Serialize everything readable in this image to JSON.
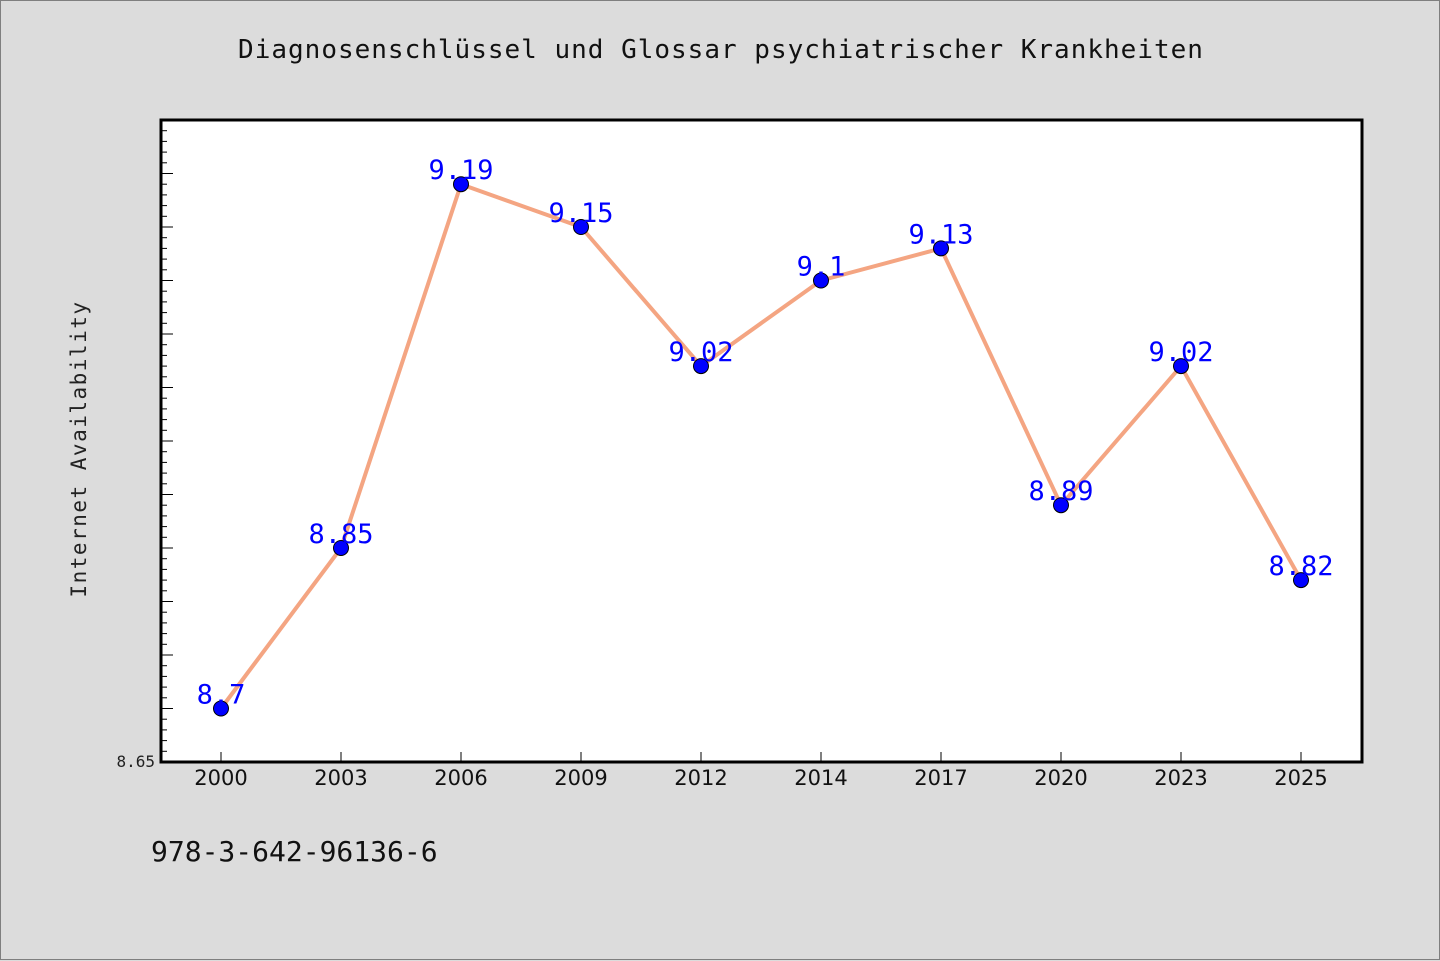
{
  "chart_data": {
    "type": "line",
    "title": "Diagnosenschlüssel und Glossar psychiatrischer Krankheiten",
    "xlabel": "",
    "ylabel": "Internet Availability",
    "categories": [
      "2000",
      "2003",
      "2006",
      "2009",
      "2012",
      "2014",
      "2017",
      "2020",
      "2023",
      "2025"
    ],
    "series": [
      {
        "values": [
          8.7,
          8.85,
          9.19,
          9.15,
          9.02,
          9.1,
          9.13,
          8.89,
          9.02,
          8.82
        ],
        "data_labels": [
          "8.7",
          "8.85",
          "9.19",
          "9.15",
          "9.02",
          "9.1",
          "9.13",
          "8.89",
          "9.02",
          "8.82"
        ]
      }
    ],
    "ylim": [
      8.65,
      9.25
    ],
    "ytick_labels": [
      "8.65"
    ],
    "grid": false,
    "line_color": "#f4a582",
    "marker_color": "#0000ff",
    "label_color": "#0000ff"
  },
  "footer": {
    "isbn": "978-3-642-96136-6"
  }
}
